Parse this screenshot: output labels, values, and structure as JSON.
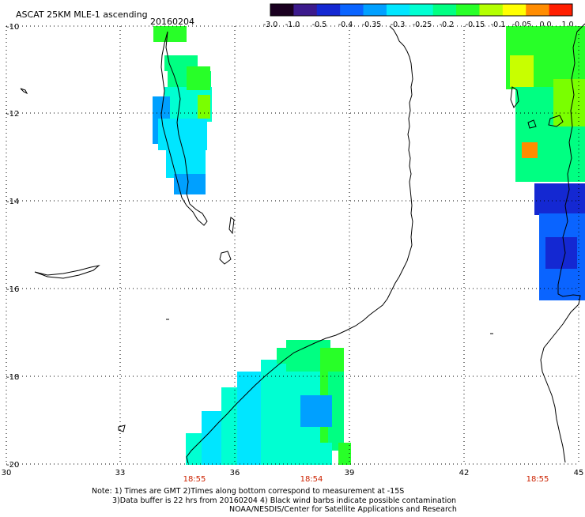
{
  "header": {
    "title": "ASCAT 25KM MLE-1 ascending",
    "date": "20160204"
  },
  "colorbar": {
    "labels": [
      "-3.0",
      "-1.0",
      "-0.5",
      "-0.4",
      "-0.35",
      "-0.3",
      "-0.25",
      "-0.2",
      "-0.15",
      "-0.1",
      "-0.05",
      "0.0",
      "1.0"
    ],
    "colors": [
      "#1a0020",
      "#3c1a8c",
      "#1428d2",
      "#0a64ff",
      "#00a0ff",
      "#00e6ff",
      "#00ffd2",
      "#00ff82",
      "#28ff28",
      "#b4ff00",
      "#ffff00",
      "#ff8c00",
      "#ff1e00"
    ]
  },
  "axes": {
    "lat_labels": [
      "-10",
      "-12",
      "-14",
      "-16",
      "-18",
      "-20"
    ],
    "lon_labels": [
      "30",
      "33",
      "36",
      "39",
      "42",
      "45"
    ]
  },
  "pass_times": [
    "18:55",
    "18:54",
    "18:55"
  ],
  "notes": {
    "line1": "Note: 1) Times are GMT 2)Times along bottom correspond to measurement at -15S",
    "line2": "3)Data buffer is 22 hrs from 20160204 4) Black wind barbs indicate possible contamination",
    "line3": "NOAA/NESDIS/Center for Satellite Applications and Research"
  },
  "palette": {
    "text_time": "#cc2200",
    "grid": "#000000"
  }
}
